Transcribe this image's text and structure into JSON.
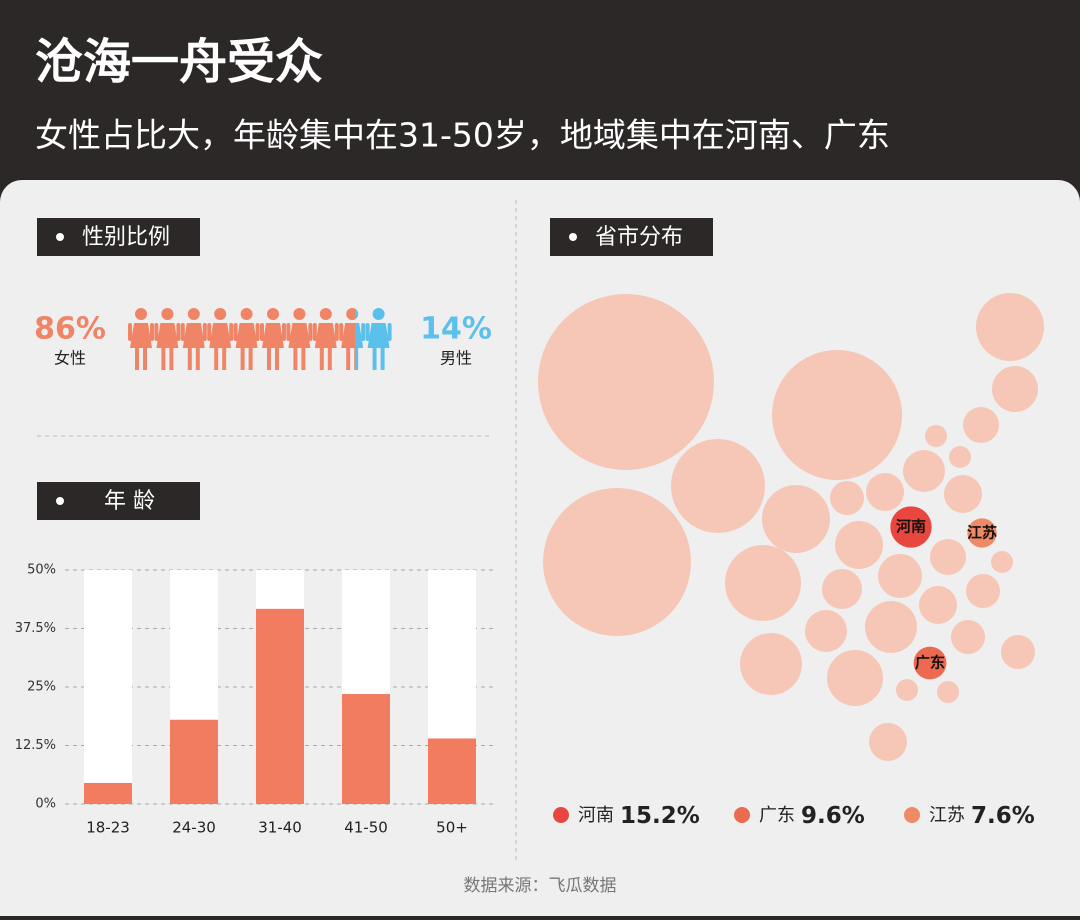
{
  "header": {
    "title": "沧海一舟受众",
    "subtitle": "女性占比大，年龄集中在31-50岁，地域集中在河南、广东"
  },
  "chart_data": [
    {
      "type": "pictogram",
      "title": "性别比例",
      "categories": [
        "女性",
        "男性"
      ],
      "values": [
        86,
        14
      ],
      "value_labels": [
        "86%",
        "14%"
      ],
      "colors": [
        "#f08466",
        "#5bc0eb"
      ]
    },
    {
      "type": "bar",
      "title": "年 龄",
      "categories": [
        "18-23",
        "24-30",
        "31-40",
        "41-50",
        "50+"
      ],
      "values": [
        4.5,
        18,
        41.7,
        23.5,
        14
      ],
      "color": "#f27c5f",
      "ylim": [
        0,
        50
      ],
      "yticks": [
        {
          "value": 0,
          "label": "0%"
        },
        {
          "value": 12.5,
          "label": "12.5%"
        },
        {
          "value": 25,
          "label": "25%"
        },
        {
          "value": 37.5,
          "label": "37.5%"
        },
        {
          "value": 50,
          "label": "50%"
        }
      ],
      "grid": true
    },
    {
      "type": "bubble",
      "title": "省市分布",
      "categories": [
        "河南",
        "广东",
        "江苏"
      ],
      "values": [
        15.2,
        9.6,
        7.6
      ],
      "value_labels": [
        "15.2%",
        "9.6%",
        "7.6%"
      ],
      "colors": [
        "#e8463e",
        "#ec6a4f",
        "#ee8a65"
      ]
    }
  ],
  "source": "数据来源：飞瓜数据"
}
